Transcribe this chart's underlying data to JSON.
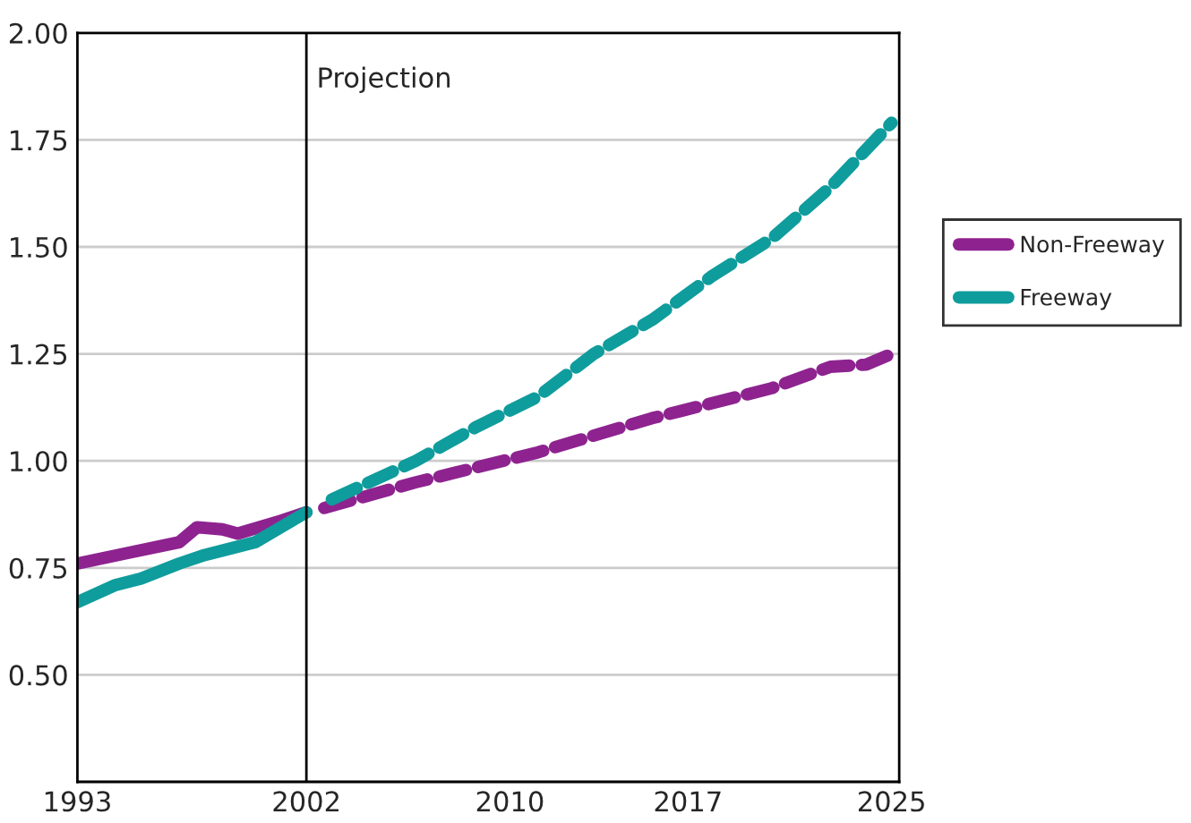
{
  "chart_data": {
    "type": "line",
    "series": [
      {
        "name": "Non-Freeway",
        "color": "#8e2390",
        "line_style": "solid",
        "x": [
          1993,
          1995,
          1997,
          1997.7,
          1998.7,
          1999.3,
          2001,
          2002
        ],
        "values": [
          0.76,
          0.785,
          0.81,
          0.845,
          0.84,
          0.83,
          0.86,
          0.88
        ]
      },
      {
        "name": "Freeway",
        "color": "#0f9c9c",
        "line_style": "solid",
        "x": [
          1993,
          1994.5,
          1995.5,
          1997,
          1998,
          2000,
          2002
        ],
        "values": [
          0.67,
          0.71,
          0.725,
          0.76,
          0.78,
          0.81,
          0.88
        ]
      },
      {
        "color": "#8e2390",
        "line_style": "dashed",
        "x": [
          2002.7,
          2006.3,
          2011.1,
          2015.6,
          2020.3,
          2022.6,
          2024,
          2025
        ],
        "values": [
          0.89,
          0.95,
          1.02,
          1.1,
          1.17,
          1.22,
          1.225,
          1.25
        ]
      },
      {
        "color": "#0f9c9c",
        "line_style": "dashed",
        "x": [
          2003,
          2006.3,
          2008.7,
          2011.1,
          2013.3,
          2015.6,
          2017.9,
          2020.3,
          2022.6,
          2025
        ],
        "values": [
          0.91,
          1.0,
          1.08,
          1.15,
          1.25,
          1.33,
          1.43,
          1.52,
          1.64,
          1.79
        ]
      }
    ],
    "xlim": [
      1993,
      2025.3
    ],
    "xticks": [
      1993,
      2002,
      2010,
      2017,
      2025
    ],
    "ylim": [
      0.25,
      2.0
    ],
    "yticks": [
      {
        "value": 0.25,
        "label": null
      },
      {
        "value": 0.5,
        "label": "0.50"
      },
      {
        "value": 0.75,
        "label": "0.75"
      },
      {
        "value": 1.0,
        "label": "1.00"
      },
      {
        "value": 1.25,
        "label": "1.25"
      },
      {
        "value": 1.5,
        "label": "1.50"
      },
      {
        "value": 1.75,
        "label": "1.75"
      },
      {
        "value": 2.0,
        "label": "2.00"
      }
    ],
    "ref_lines": [
      {
        "axis": "x",
        "value": 2002,
        "label": "Projection",
        "color": "#000000",
        "line_style": "solid"
      }
    ],
    "grid": "y",
    "legend": "right",
    "marker": "none"
  }
}
